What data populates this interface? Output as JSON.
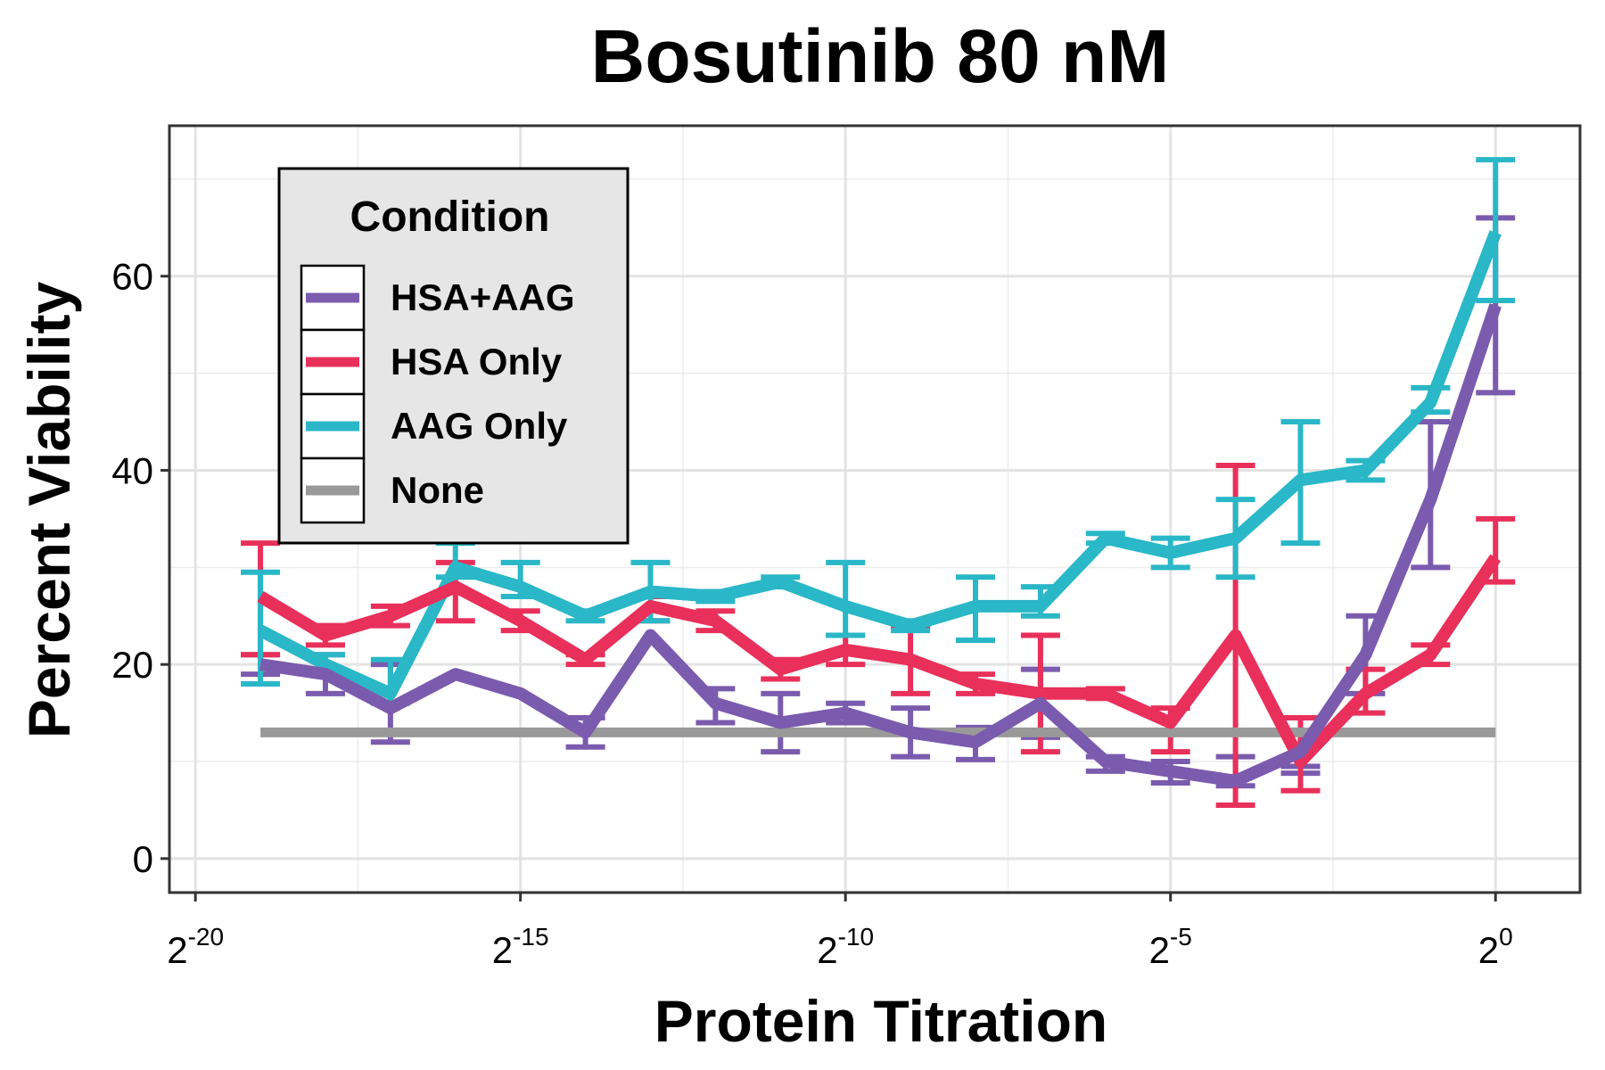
{
  "chart_data": {
    "type": "line",
    "title": "Bosutinib 80 nM",
    "xlabel": "Protein Titration",
    "ylabel": "Percent Viability",
    "x_scale": "log2",
    "x_ticks": [
      {
        "base": "2",
        "exp": "-20",
        "value": -20
      },
      {
        "base": "2",
        "exp": "-15",
        "value": -15
      },
      {
        "base": "2",
        "exp": "-10",
        "value": -10
      },
      {
        "base": "2",
        "exp": "-5",
        "value": -5
      },
      {
        "base": "2",
        "exp": "0",
        "value": 0
      }
    ],
    "y_ticks": [
      {
        "label": "0",
        "value": 0
      },
      {
        "label": "20",
        "value": 20
      },
      {
        "label": "40",
        "value": 40
      },
      {
        "label": "60",
        "value": 60
      }
    ],
    "xlim_exp": [
      -20.4,
      1.3
    ],
    "ylim": [
      -3.5,
      75.5
    ],
    "grid": true,
    "legend": {
      "title": "Condition",
      "position": "top-left"
    },
    "x_exponents": [
      -19,
      -18,
      -17,
      -16,
      -15,
      -14,
      -13,
      -12,
      -11,
      -10,
      -9,
      -8,
      -7,
      -6,
      -5,
      -4,
      -3,
      -2,
      -1,
      0
    ],
    "series": [
      {
        "name": "HSA+AAG",
        "color": "#7B5BAE",
        "y": [
          20,
          19,
          15.5,
          19,
          17,
          13,
          23,
          16,
          14,
          15,
          13,
          12,
          16,
          10,
          9,
          8,
          11,
          21,
          37,
          57
        ],
        "err_low": [
          19,
          17,
          12,
          null,
          null,
          11.5,
          null,
          14,
          11,
          14,
          10.5,
          10.2,
          12.5,
          9,
          7.8,
          7.5,
          8.8,
          17,
          30,
          48
        ],
        "err_high": [
          21,
          21,
          20,
          null,
          null,
          14.5,
          null,
          17.5,
          17,
          16,
          15.5,
          13.5,
          19.5,
          10.5,
          10,
          10.5,
          9.5,
          25,
          45,
          66
        ]
      },
      {
        "name": "HSA Only",
        "color": "#E8305A",
        "y": [
          27,
          23,
          25,
          28,
          24.5,
          20.5,
          26,
          24.5,
          19.5,
          21.5,
          20.5,
          18,
          17,
          17,
          14,
          23,
          10,
          17,
          21,
          31
        ],
        "err_low": [
          21,
          22,
          24,
          24.5,
          23.5,
          20,
          24.5,
          23.5,
          18.5,
          20,
          17,
          17,
          11,
          16.5,
          11,
          5.5,
          7,
          15,
          20,
          28.5
        ],
        "err_high": [
          32.5,
          24,
          26,
          30.5,
          25.5,
          21,
          27,
          25.5,
          20.5,
          23,
          24,
          19,
          23,
          17.5,
          15.5,
          40.5,
          14.5,
          19.5,
          22,
          35
        ]
      },
      {
        "name": "AAG Only",
        "color": "#2AB7C7",
        "y": [
          23.5,
          20,
          17,
          30,
          28,
          25,
          27.5,
          27,
          28.5,
          26,
          24,
          26,
          26,
          33,
          31.5,
          33,
          39,
          40,
          47,
          64.5
        ],
        "err_low": [
          18,
          19,
          16,
          29,
          27,
          24.5,
          24.5,
          26.5,
          28,
          23,
          23.5,
          22.5,
          25,
          32.5,
          30,
          29,
          32.5,
          39,
          46,
          57.5
        ],
        "err_high": [
          29.5,
          21,
          20.5,
          32.5,
          30.5,
          25.5,
          30.5,
          27.5,
          29,
          30.5,
          24.5,
          29,
          28,
          33.5,
          33,
          37,
          45,
          41,
          48.5,
          72
        ]
      },
      {
        "name": "None",
        "color": "#999999",
        "y": [
          13,
          13,
          13,
          13,
          13,
          13,
          13,
          13,
          13,
          13,
          13,
          13,
          13,
          13,
          13,
          13,
          13,
          13,
          13,
          13
        ],
        "err_low": [],
        "err_high": []
      }
    ]
  }
}
